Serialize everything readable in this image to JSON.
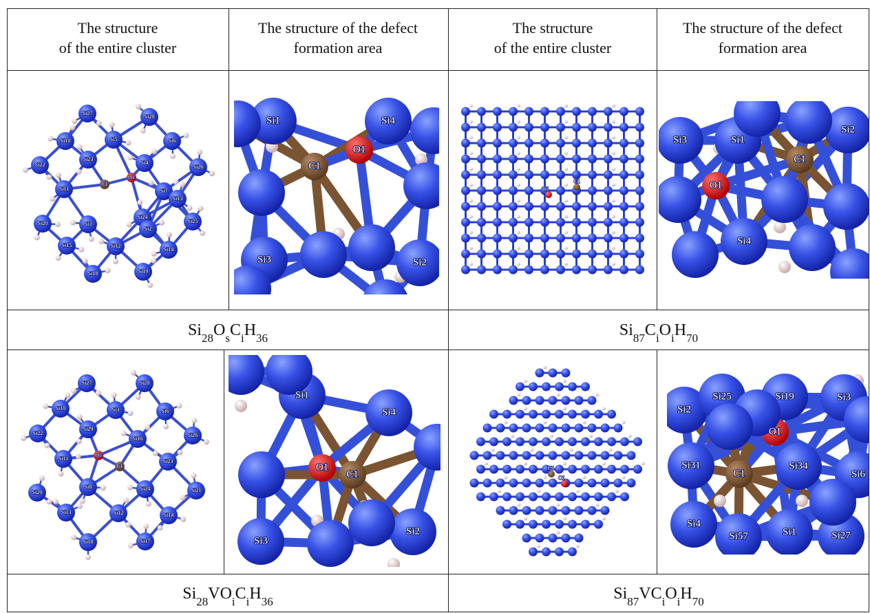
{
  "table": {
    "header": [
      [
        "The structure",
        "of the entire cluster"
      ],
      [
        "The structure of the defect",
        "formation area"
      ],
      [
        "The structure",
        "of the entire cluster"
      ],
      [
        "The structure of the defect",
        "formation area"
      ]
    ],
    "images": [
      {
        "labels": [
          "Si27",
          "Si28",
          "Si10",
          "Si5",
          "Si6",
          "Si22",
          "Si23",
          "Si4",
          "Si26",
          "C1",
          "O1",
          "Si11",
          "Si7",
          "Si13",
          "Si20",
          "Si3",
          "Si24",
          "Si2",
          "Si25",
          "Si15",
          "Si12",
          "Si14",
          "Si18",
          "Si19"
        ]
      },
      {
        "labels": [
          "Si1",
          "Si4",
          "C1",
          "O1",
          "Si3",
          "Si2"
        ]
      },
      {
        "labels": [
          "O1",
          "C1"
        ]
      },
      {
        "labels": [
          "Si3",
          "Si1",
          "Si2",
          "C1",
          "O1",
          "Si4"
        ]
      },
      {
        "labels": [
          "Si27",
          "Si28",
          "Si10",
          "Si3",
          "Si6",
          "Si22",
          "Si29",
          "Si16",
          "Si26",
          "Si11",
          "O1",
          "C1",
          "Si23",
          "Si20",
          "Si8",
          "Si24",
          "Si21",
          "Si13",
          "Si12",
          "Si14",
          "Si18",
          "Si17"
        ]
      },
      {
        "labels": [
          "Si1",
          "Si4",
          "O1",
          "C1",
          "Si3",
          "Si2"
        ]
      },
      {
        "labels": [
          "O1",
          "C1"
        ]
      },
      {
        "labels": [
          "Si2",
          "Si25",
          "Si19",
          "Si3",
          "O1",
          "Si31",
          "C1",
          "Si34",
          "Si6",
          "Si4",
          "Si57",
          "Si1",
          "Si27"
        ]
      }
    ],
    "formulas": [
      [
        "Si",
        "28",
        "O",
        "s",
        "C",
        "i",
        "H",
        "36"
      ],
      [
        "Si",
        "87",
        "C",
        "i",
        "O",
        "i",
        "H",
        "70"
      ],
      [
        "Si",
        "28",
        "VO",
        "i",
        "C",
        "i",
        "H",
        "36"
      ],
      [
        "Si",
        "87",
        "VC",
        "i",
        "O",
        "i",
        "H",
        "70"
      ]
    ]
  }
}
